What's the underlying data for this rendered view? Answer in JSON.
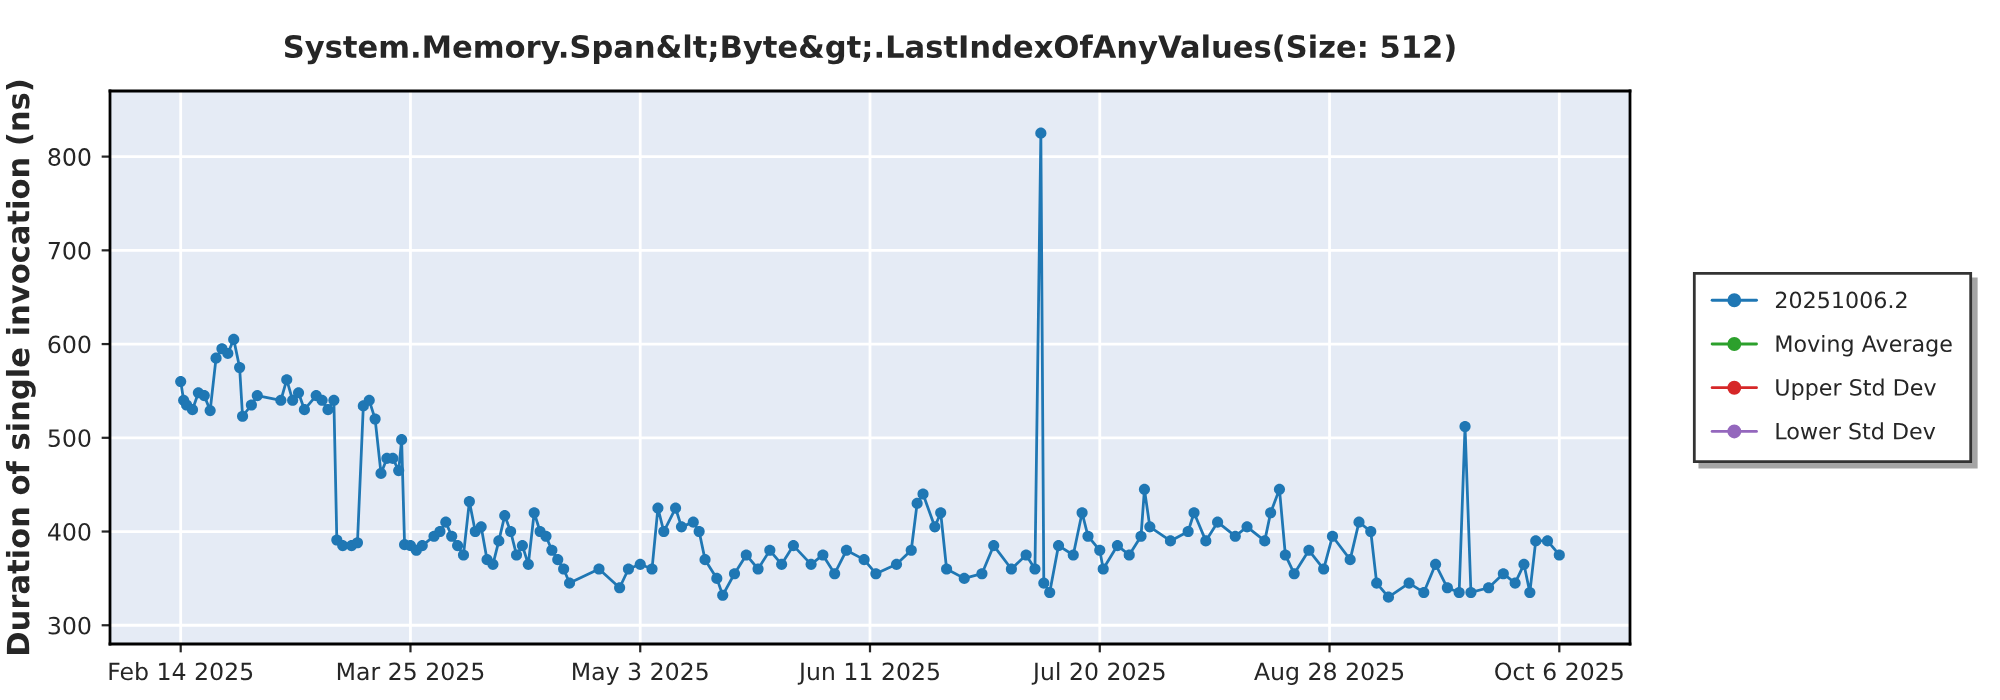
{
  "chart_data": {
    "type": "line",
    "title": "System.Memory.Span&lt;Byte&gt;.LastIndexOfAnyValues(Size: 512)",
    "ylabel": "Duration of single invocation (ns)",
    "x": [
      "2025-02-14",
      "2025-02-14T12:00",
      "2025-02-15",
      "2025-02-16",
      "2025-02-17",
      "2025-02-18",
      "2025-02-19",
      "2025-02-20",
      "2025-02-21",
      "2025-02-22",
      "2025-02-23",
      "2025-02-24",
      "2025-02-24T12:00",
      "2025-02-26",
      "2025-02-27",
      "2025-03-03",
      "2025-03-04",
      "2025-03-05",
      "2025-03-06",
      "2025-03-07",
      "2025-03-09",
      "2025-03-10",
      "2025-03-11",
      "2025-03-12",
      "2025-03-12T12:00",
      "2025-03-13T12:00",
      "2025-03-15",
      "2025-03-16",
      "2025-03-17",
      "2025-03-18",
      "2025-03-19",
      "2025-03-20",
      "2025-03-21",
      "2025-03-22",
      "2025-03-23",
      "2025-03-23T12:00",
      "2025-03-24",
      "2025-03-25",
      "2025-03-26",
      "2025-03-27",
      "2025-03-29",
      "2025-03-30",
      "2025-03-31",
      "2025-04-01",
      "2025-04-02",
      "2025-04-03",
      "2025-04-04",
      "2025-04-05",
      "2025-04-06",
      "2025-04-07",
      "2025-04-08",
      "2025-04-09",
      "2025-04-10",
      "2025-04-11",
      "2025-04-12",
      "2025-04-13",
      "2025-04-14",
      "2025-04-15",
      "2025-04-16",
      "2025-04-17",
      "2025-04-18",
      "2025-04-19",
      "2025-04-20",
      "2025-04-21",
      "2025-04-26",
      "2025-04-29T12:00",
      "2025-05-01",
      "2025-05-03",
      "2025-05-05",
      "2025-05-06",
      "2025-05-07",
      "2025-05-09",
      "2025-05-10",
      "2025-05-12",
      "2025-05-13",
      "2025-05-14",
      "2025-05-16",
      "2025-05-17",
      "2025-05-19",
      "2025-05-21",
      "2025-05-23",
      "2025-05-25",
      "2025-05-27",
      "2025-05-29",
      "2025-06-01",
      "2025-06-03",
      "2025-06-05",
      "2025-06-07",
      "2025-06-10",
      "2025-06-12",
      "2025-06-15T12:00",
      "2025-06-18",
      "2025-06-19",
      "2025-06-20",
      "2025-06-22",
      "2025-06-23",
      "2025-06-24",
      "2025-06-27",
      "2025-06-30",
      "2025-07-02",
      "2025-07-05",
      "2025-07-07T12:00",
      "2025-07-09",
      "2025-07-10",
      "2025-07-10T12:00",
      "2025-07-11T12:00",
      "2025-07-13",
      "2025-07-15T12:00",
      "2025-07-17",
      "2025-07-18",
      "2025-07-20",
      "2025-07-20T14:00",
      "2025-07-23",
      "2025-07-25",
      "2025-07-27",
      "2025-07-27T14:00",
      "2025-07-28T12:00",
      "2025-08-01",
      "2025-08-04",
      "2025-08-05",
      "2025-08-07",
      "2025-08-09",
      "2025-08-12",
      "2025-08-14",
      "2025-08-17",
      "2025-08-18",
      "2025-08-19T12:00",
      "2025-08-20T12:00",
      "2025-08-22",
      "2025-08-24T12:00",
      "2025-08-27",
      "2025-08-28T12:00",
      "2025-08-31T12:00",
      "2025-09-02",
      "2025-09-04",
      "2025-09-05",
      "2025-09-07",
      "2025-09-10T12:00",
      "2025-09-13",
      "2025-09-15",
      "2025-09-17",
      "2025-09-19",
      "2025-09-20",
      "2025-09-21",
      "2025-09-24",
      "2025-09-26T12:00",
      "2025-09-28T12:00",
      "2025-09-30",
      "2025-10-01",
      "2025-10-02",
      "2025-10-04",
      "2025-10-06"
    ],
    "series": [
      {
        "name": "20251006.2",
        "color": "#1f77b4",
        "values": [
          560,
          540,
          535,
          530,
          548,
          545,
          529,
          585,
          595,
          590,
          605,
          575,
          523,
          535,
          545,
          540,
          562,
          540,
          548,
          530,
          545,
          540,
          530,
          540,
          391,
          385,
          385,
          388,
          534,
          540,
          520,
          462,
          478,
          478,
          465,
          498,
          386,
          385,
          380,
          385,
          395,
          400,
          410,
          395,
          385,
          375,
          432,
          400,
          405,
          370,
          365,
          390,
          417,
          400,
          375,
          385,
          365,
          420,
          400,
          395,
          380,
          370,
          360,
          345,
          360,
          340,
          360,
          365,
          360,
          425,
          400,
          425,
          405,
          410,
          400,
          370,
          350,
          332,
          355,
          375,
          360,
          380,
          365,
          385,
          365,
          375,
          355,
          380,
          370,
          355,
          365,
          380,
          430,
          440,
          405,
          420,
          360,
          350,
          355,
          385,
          360,
          375,
          360,
          825,
          345,
          335,
          385,
          375,
          420,
          395,
          380,
          360,
          385,
          375,
          395,
          445,
          405,
          390,
          400,
          420,
          390,
          410,
          395,
          405,
          390,
          420,
          445,
          375,
          355,
          380,
          360,
          395,
          370,
          410,
          400,
          345,
          330,
          345,
          335,
          365,
          340,
          335,
          512,
          335,
          340,
          355,
          345,
          365,
          335,
          390,
          390,
          375
        ]
      },
      {
        "name": "Moving Average",
        "color": "#2ca02c",
        "values": [
          null,
          null,
          null,
          null,
          null,
          null,
          null,
          null,
          null,
          null,
          null,
          null,
          null,
          null,
          null,
          null,
          null,
          null,
          null,
          null,
          null,
          null,
          null,
          null,
          null,
          null,
          null,
          null,
          null,
          null,
          null,
          null,
          null,
          null,
          null,
          null,
          null,
          null,
          null,
          null,
          null,
          null,
          null,
          null,
          null,
          null,
          null,
          null,
          null,
          null,
          null,
          null,
          null,
          null,
          null,
          null,
          null,
          null,
          null,
          null,
          null,
          null,
          null,
          null,
          null,
          null,
          null,
          null,
          null,
          null,
          null,
          null,
          null,
          null,
          null,
          null,
          null,
          null,
          null,
          null,
          null,
          null,
          null,
          null,
          null,
          null,
          null,
          null,
          null,
          null,
          null,
          null,
          null,
          null,
          null,
          null,
          null,
          null,
          null,
          null,
          null,
          null,
          null,
          null,
          null,
          null,
          null,
          null,
          null,
          null,
          null,
          null,
          null,
          null,
          null,
          null,
          null,
          null,
          null,
          null,
          null,
          null,
          null,
          null,
          null,
          null,
          null,
          null,
          null,
          null,
          null,
          null,
          null,
          null,
          null,
          null,
          null,
          null,
          null,
          null,
          null,
          null,
          null,
          null,
          null,
          null,
          null,
          null,
          null,
          null,
          null,
          null
        ]
      },
      {
        "name": "Upper Std Dev",
        "color": "#d62728",
        "values": [
          null,
          null,
          null,
          null,
          null,
          null,
          null,
          null,
          null,
          null,
          null,
          null,
          null,
          null,
          null,
          null,
          null,
          null,
          null,
          null,
          null,
          null,
          null,
          null,
          null,
          null,
          null,
          null,
          null,
          null,
          null,
          null,
          null,
          null,
          null,
          null,
          null,
          null,
          null,
          null,
          null,
          null,
          null,
          null,
          null,
          null,
          null,
          null,
          null,
          null,
          null,
          null,
          null,
          null,
          null,
          null,
          null,
          null,
          null,
          null,
          null,
          null,
          null,
          null,
          null,
          null,
          null,
          null,
          null,
          null,
          null,
          null,
          null,
          null,
          null,
          null,
          null,
          null,
          null,
          null,
          null,
          null,
          null,
          null,
          null,
          null,
          null,
          null,
          null,
          null,
          null,
          null,
          null,
          null,
          null,
          null,
          null,
          null,
          null,
          null,
          null,
          null,
          null,
          null,
          null,
          null,
          null,
          null,
          null,
          null,
          null,
          null,
          null,
          null,
          null,
          null,
          null,
          null,
          null,
          null,
          null,
          null,
          null,
          null,
          null,
          null,
          null,
          null,
          null,
          null,
          null,
          null,
          null,
          null,
          null,
          null,
          null,
          null,
          null,
          null,
          null,
          null,
          null,
          null,
          null,
          null,
          null,
          null,
          null,
          null,
          null,
          null
        ]
      },
      {
        "name": "Lower Std Dev",
        "color": "#9467bd",
        "values": [
          null,
          null,
          null,
          null,
          null,
          null,
          null,
          null,
          null,
          null,
          null,
          null,
          null,
          null,
          null,
          null,
          null,
          null,
          null,
          null,
          null,
          null,
          null,
          null,
          null,
          null,
          null,
          null,
          null,
          null,
          null,
          null,
          null,
          null,
          null,
          null,
          null,
          null,
          null,
          null,
          null,
          null,
          null,
          null,
          null,
          null,
          null,
          null,
          null,
          null,
          null,
          null,
          null,
          null,
          null,
          null,
          null,
          null,
          null,
          null,
          null,
          null,
          null,
          null,
          null,
          null,
          null,
          null,
          null,
          null,
          null,
          null,
          null,
          null,
          null,
          null,
          null,
          null,
          null,
          null,
          null,
          null,
          null,
          null,
          null,
          null,
          null,
          null,
          null,
          null,
          null,
          null,
          null,
          null,
          null,
          null,
          null,
          null,
          null,
          null,
          null,
          null,
          null,
          null,
          null,
          null,
          null,
          null,
          null,
          null,
          null,
          null,
          null,
          null,
          null,
          null,
          null,
          null,
          null,
          null,
          null,
          null,
          null,
          null,
          null,
          null,
          null,
          null,
          null,
          null,
          null,
          null,
          null,
          null,
          null,
          null,
          null,
          null,
          null,
          null,
          null,
          null,
          null,
          null,
          null,
          null,
          null,
          null,
          null,
          null,
          null,
          null
        ]
      }
    ],
    "xlim": [
      "2025-02-02",
      "2025-10-18"
    ],
    "xticks": [
      {
        "value": "2025-02-14",
        "label": "Feb 14 2025"
      },
      {
        "value": "2025-03-25",
        "label": "Mar 25 2025"
      },
      {
        "value": "2025-05-03",
        "label": "May 3 2025"
      },
      {
        "value": "2025-06-11",
        "label": "Jun 11 2025"
      },
      {
        "value": "2025-07-20",
        "label": "Jul 20 2025"
      },
      {
        "value": "2025-08-28",
        "label": "Aug 28 2025"
      },
      {
        "value": "2025-10-06",
        "label": "Oct 6 2025"
      }
    ],
    "ylim": [
      280,
      870
    ],
    "yticks": [
      300,
      400,
      500,
      600,
      700,
      800
    ],
    "grid": true,
    "legend": "right",
    "marker": "circle",
    "line_style": "solid"
  }
}
